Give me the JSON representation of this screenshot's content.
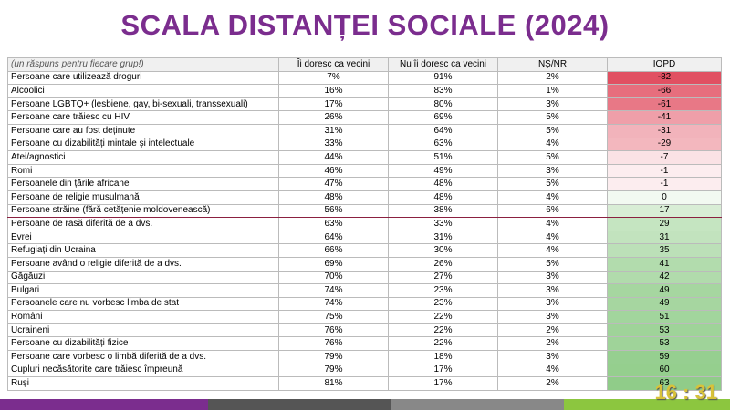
{
  "header": {
    "title": "SCALA DISTANȚEI SOCIALE (2024)"
  },
  "table": {
    "columns": [
      "(un răspuns pentru fiecare grup!)",
      "Îi doresc ca vecini",
      "Nu îi doresc ca vecini",
      "NȘ/NR",
      "IOPD"
    ],
    "rows": [
      [
        "Persoane care utilizează droguri",
        "7%",
        "91%",
        "2%",
        -82
      ],
      [
        "Alcoolici",
        "16%",
        "83%",
        "1%",
        -66
      ],
      [
        "Persoane LGBTQ+ (lesbiene, gay, bi-sexuali, transsexuali)",
        "17%",
        "80%",
        "3%",
        -61
      ],
      [
        "Persoane care trăiesc cu HIV",
        "26%",
        "69%",
        "5%",
        -41
      ],
      [
        "Persoane care au fost deținute",
        "31%",
        "64%",
        "5%",
        -31
      ],
      [
        "Persoane cu dizabilități mintale și intelectuale",
        "33%",
        "63%",
        "4%",
        -29
      ],
      [
        "Atei/agnostici",
        "44%",
        "51%",
        "5%",
        -7
      ],
      [
        "Romi",
        "46%",
        "49%",
        "3%",
        -1
      ],
      [
        "Persoanele din țările africane",
        "47%",
        "48%",
        "5%",
        -1
      ],
      [
        "Persoane de religie musulmană",
        "48%",
        "48%",
        "4%",
        0
      ],
      [
        "Persoane străine (fără cetățenie moldovenească)",
        "56%",
        "38%",
        "6%",
        17
      ],
      [
        "Persoane de rasă diferită de a dvs.",
        "63%",
        "33%",
        "4%",
        29
      ],
      [
        "Evrei",
        "64%",
        "31%",
        "4%",
        31
      ],
      [
        "Refugiați din Ucraina",
        "66%",
        "30%",
        "4%",
        35
      ],
      [
        "Persoane având o religie diferită de a dvs.",
        "69%",
        "26%",
        "5%",
        41
      ],
      [
        "Găgăuzi",
        "70%",
        "27%",
        "3%",
        42
      ],
      [
        "Bulgari",
        "74%",
        "23%",
        "3%",
        49
      ],
      [
        "Persoanele care nu vorbesc limba de stat",
        "74%",
        "23%",
        "3%",
        49
      ],
      [
        "Români",
        "75%",
        "22%",
        "3%",
        51
      ],
      [
        "Ucraineni",
        "76%",
        "22%",
        "2%",
        53
      ],
      [
        "Persoane cu dizabilități fizice",
        "76%",
        "22%",
        "2%",
        53
      ],
      [
        "Persoane care vorbesc o limbă diferită de a dvs.",
        "79%",
        "18%",
        "3%",
        59
      ],
      [
        "Cupluri necăsătorite care trăiesc împreună",
        "79%",
        "17%",
        "4%",
        60
      ],
      [
        "Ruși",
        "81%",
        "17%",
        "2%",
        63
      ]
    ]
  },
  "footer": {
    "time": "16 : 31"
  }
}
